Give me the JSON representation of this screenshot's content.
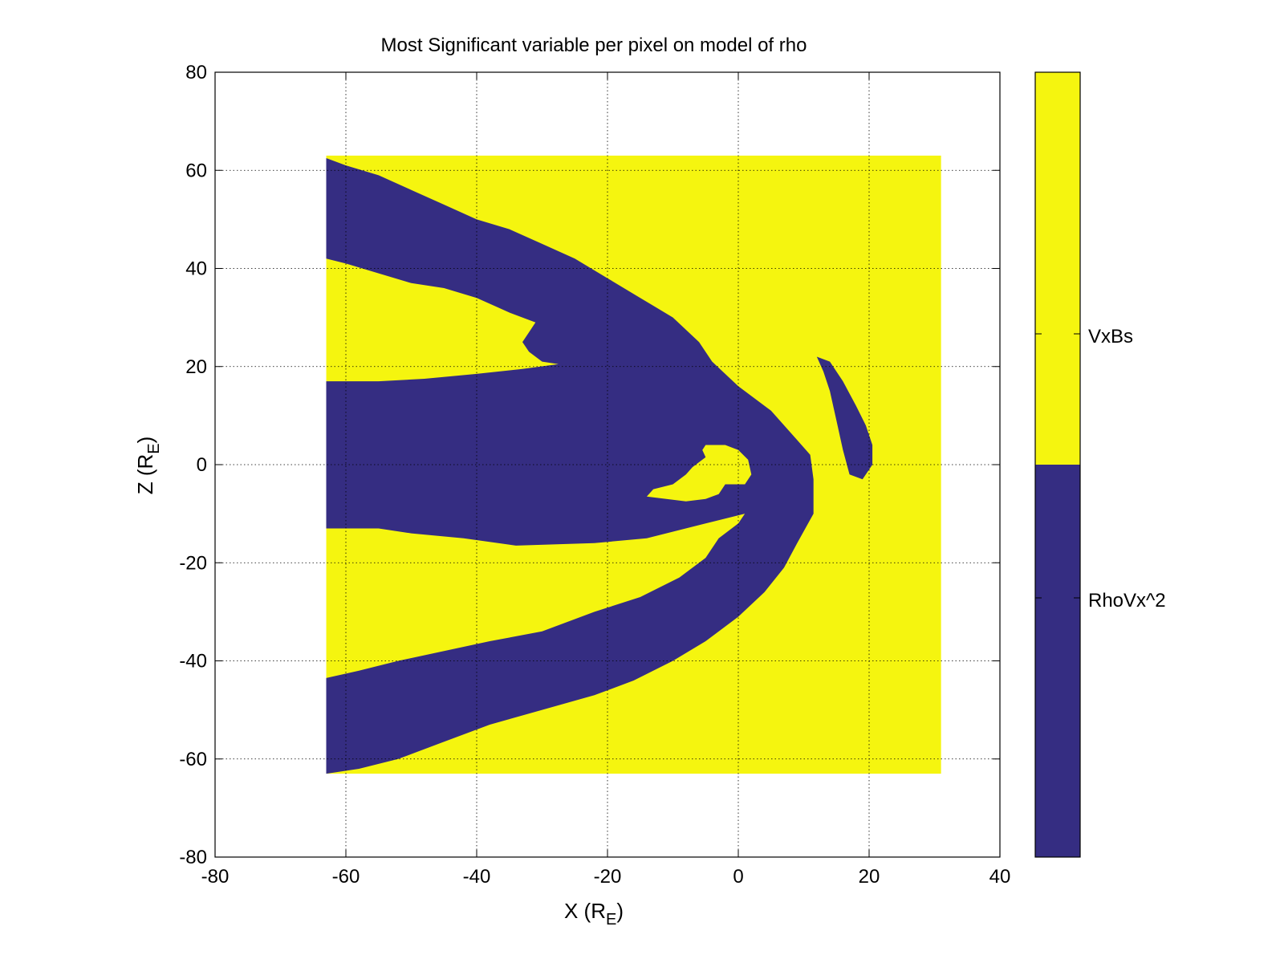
{
  "chart_data": {
    "type": "heatmap",
    "title": "Most Significant variable per pixel on model of rho",
    "xlabel": {
      "main": "X (R",
      "sub": "E",
      "tail": ")"
    },
    "ylabel": {
      "main": "Z (R",
      "sub": "E",
      "tail": ")"
    },
    "xlim": [
      -80,
      40
    ],
    "ylim": [
      -80,
      80
    ],
    "xticks": [
      -80,
      -60,
      -40,
      -20,
      0,
      20,
      40
    ],
    "yticks": [
      -80,
      -60,
      -40,
      -20,
      0,
      20,
      40,
      60,
      80
    ],
    "grid": true,
    "data_extent": {
      "x": [
        -63,
        31
      ],
      "z": [
        -63,
        63
      ]
    },
    "categories": [
      {
        "name": "VxBs",
        "color": "#f5f50f"
      },
      {
        "name": "RhoVx^2",
        "color": "#352d82"
      }
    ],
    "regions": [
      {
        "category": "RhoVx^2",
        "label": "upper lobe",
        "points": [
          [
            -63,
            62.5
          ],
          [
            -60,
            61
          ],
          [
            -55,
            59
          ],
          [
            -50,
            56
          ],
          [
            -45,
            53
          ],
          [
            -40,
            50
          ],
          [
            -35,
            48
          ],
          [
            -30,
            45
          ],
          [
            -25,
            42
          ],
          [
            -20,
            38
          ],
          [
            -15,
            34
          ],
          [
            -10,
            30
          ],
          [
            -6,
            25
          ],
          [
            -4,
            21
          ],
          [
            0,
            16
          ],
          [
            5,
            11
          ],
          [
            9,
            5
          ],
          [
            11,
            2
          ],
          [
            11.5,
            -3
          ],
          [
            11.5,
            -10
          ],
          [
            9,
            -16
          ],
          [
            7,
            -21
          ],
          [
            4,
            -26
          ],
          [
            0,
            -31
          ],
          [
            -5,
            -36
          ],
          [
            -10,
            -40
          ],
          [
            -16,
            -44
          ],
          [
            -22,
            -47
          ],
          [
            -30,
            -50
          ],
          [
            -38,
            -53
          ],
          [
            -46,
            -57
          ],
          [
            -52,
            -60
          ],
          [
            -58,
            -62
          ],
          [
            -63,
            -63
          ],
          [
            -63,
            -43.5
          ],
          [
            -58,
            -42
          ],
          [
            -52,
            -40
          ],
          [
            -45,
            -38
          ],
          [
            -38,
            -36
          ],
          [
            -30,
            -34
          ],
          [
            -22,
            -30
          ],
          [
            -15,
            -27
          ],
          [
            -9,
            -23
          ],
          [
            -5,
            -19
          ],
          [
            -3,
            -15
          ],
          [
            0,
            -12
          ],
          [
            1,
            -10
          ],
          [
            -5,
            -12
          ],
          [
            -14,
            -15
          ],
          [
            -22,
            -16
          ],
          [
            -34,
            -16.5
          ],
          [
            -42,
            -15
          ],
          [
            -50,
            -14
          ],
          [
            -55,
            -13
          ],
          [
            -63,
            -13
          ],
          [
            -63,
            17
          ],
          [
            -55,
            17
          ],
          [
            -48,
            17.5
          ],
          [
            -40,
            18.5
          ],
          [
            -33,
            19.5
          ],
          [
            -27.5,
            20.5
          ],
          [
            -30,
            21
          ],
          [
            -32,
            23
          ],
          [
            -33,
            25
          ],
          [
            -32,
            27
          ],
          [
            -31,
            29
          ],
          [
            -35,
            31
          ],
          [
            -40,
            34
          ],
          [
            -45,
            36
          ],
          [
            -50,
            37
          ],
          [
            -55,
            39
          ],
          [
            -60,
            41
          ],
          [
            -63,
            42
          ]
        ]
      },
      {
        "category": "VxBs",
        "label": "inner pocket",
        "points": [
          [
            -5,
            4
          ],
          [
            -2,
            4
          ],
          [
            0,
            3
          ],
          [
            1.5,
            1
          ],
          [
            2,
            -2
          ],
          [
            1,
            -4
          ],
          [
            -2,
            -4
          ],
          [
            -3,
            -6
          ],
          [
            -5,
            -7
          ],
          [
            -8,
            -7.5
          ],
          [
            -11,
            -7
          ],
          [
            -14,
            -6.5
          ],
          [
            -13,
            -5
          ],
          [
            -10,
            -4
          ],
          [
            -8,
            -2
          ],
          [
            -7,
            -0.5
          ],
          [
            -5,
            1.5
          ],
          [
            -5.5,
            3
          ]
        ]
      },
      {
        "category": "RhoVx^2",
        "label": "bow shock sliver",
        "points": [
          [
            12,
            22
          ],
          [
            14,
            21
          ],
          [
            16,
            17
          ],
          [
            18,
            12
          ],
          [
            19.5,
            8
          ],
          [
            20.5,
            4
          ],
          [
            20.5,
            0
          ],
          [
            19,
            -3
          ],
          [
            17,
            -2
          ],
          [
            16,
            3
          ],
          [
            15,
            9
          ],
          [
            14,
            15
          ],
          [
            13,
            19
          ]
        ]
      }
    ]
  }
}
